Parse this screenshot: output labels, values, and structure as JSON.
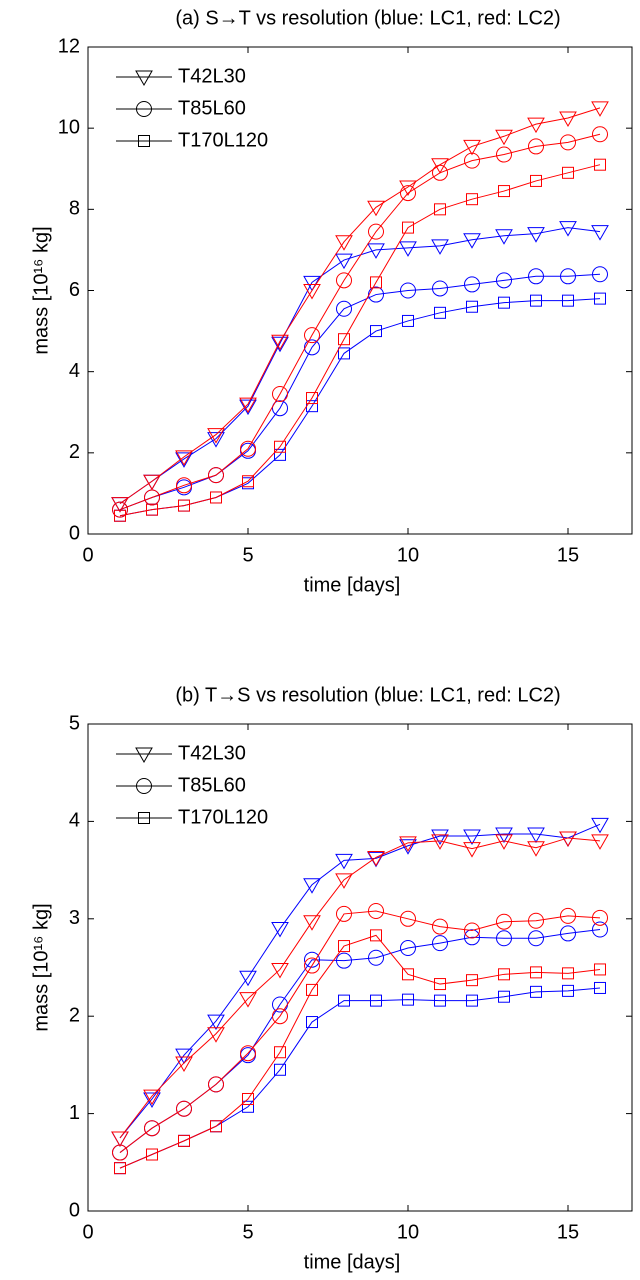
{
  "chart_data": [
    {
      "type": "line",
      "title": "(a)  S→T vs resolution (blue: LC1, red: LC2)",
      "xlabel": "time [days]",
      "ylabel": "mass [10¹⁶ kg]",
      "x": [
        1,
        2,
        3,
        4,
        5,
        6,
        7,
        8,
        9,
        10,
        11,
        12,
        13,
        14,
        15,
        16
      ],
      "xlim": [
        0,
        17
      ],
      "xticks": [
        0,
        5,
        10,
        15
      ],
      "ylim": [
        0,
        12
      ],
      "yticks": [
        0,
        2,
        4,
        6,
        8,
        10,
        12
      ],
      "grid": false,
      "legend_position": "upper-left",
      "legend": [
        {
          "name": "T42L30",
          "marker": "triangle"
        },
        {
          "name": "T85L60",
          "marker": "circle"
        },
        {
          "name": "T170L120",
          "marker": "square"
        }
      ],
      "series": [
        {
          "color": "#0000ff",
          "marker": "triangle",
          "values": [
            0.75,
            1.3,
            1.85,
            2.35,
            3.15,
            4.7,
            6.2,
            6.75,
            7.0,
            7.05,
            7.1,
            7.25,
            7.35,
            7.4,
            7.55,
            7.45
          ]
        },
        {
          "color": "#ff0000",
          "marker": "triangle",
          "values": [
            0.75,
            1.3,
            1.9,
            2.45,
            3.2,
            4.75,
            6.0,
            7.2,
            8.05,
            8.55,
            9.1,
            9.55,
            9.8,
            10.1,
            10.25,
            10.5
          ]
        },
        {
          "color": "#0000ff",
          "marker": "circle",
          "values": [
            0.6,
            0.9,
            1.15,
            1.45,
            2.05,
            3.1,
            4.6,
            5.55,
            5.9,
            6.0,
            6.05,
            6.15,
            6.25,
            6.35,
            6.35,
            6.4
          ]
        },
        {
          "color": "#ff0000",
          "marker": "circle",
          "values": [
            0.6,
            0.9,
            1.2,
            1.45,
            2.1,
            3.45,
            4.9,
            6.25,
            7.45,
            8.4,
            8.9,
            9.2,
            9.35,
            9.55,
            9.65,
            9.85
          ]
        },
        {
          "color": "#0000ff",
          "marker": "square",
          "values": [
            0.45,
            0.6,
            0.7,
            0.9,
            1.25,
            1.95,
            3.15,
            4.45,
            5.0,
            5.25,
            5.45,
            5.6,
            5.7,
            5.75,
            5.75,
            5.8
          ]
        },
        {
          "color": "#ff0000",
          "marker": "square",
          "values": [
            0.45,
            0.6,
            0.7,
            0.9,
            1.3,
            2.15,
            3.35,
            4.8,
            6.2,
            7.55,
            8.0,
            8.25,
            8.45,
            8.7,
            8.9,
            9.1
          ]
        }
      ]
    },
    {
      "type": "line",
      "title": "(b)  T→S  vs resolution (blue: LC1, red: LC2)",
      "xlabel": "time [days]",
      "ylabel": "mass [10¹⁶ kg]",
      "x": [
        1,
        2,
        3,
        4,
        5,
        6,
        7,
        8,
        9,
        10,
        11,
        12,
        13,
        14,
        15,
        16
      ],
      "xlim": [
        0,
        17
      ],
      "xticks": [
        0,
        5,
        10,
        15
      ],
      "ylim": [
        0,
        5
      ],
      "yticks": [
        0,
        1,
        2,
        3,
        4,
        5
      ],
      "grid": false,
      "legend_position": "upper-left",
      "legend": [
        {
          "name": "T42L30",
          "marker": "triangle"
        },
        {
          "name": "T85L60",
          "marker": "circle"
        },
        {
          "name": "T170L120",
          "marker": "square"
        }
      ],
      "series": [
        {
          "color": "#0000ff",
          "marker": "triangle",
          "values": [
            0.75,
            1.15,
            1.6,
            1.95,
            2.4,
            2.9,
            3.35,
            3.6,
            3.62,
            3.75,
            3.85,
            3.85,
            3.87,
            3.87,
            3.83,
            3.97
          ]
        },
        {
          "color": "#ff0000",
          "marker": "triangle",
          "values": [
            0.75,
            1.18,
            1.52,
            1.82,
            2.18,
            2.48,
            2.97,
            3.4,
            3.63,
            3.78,
            3.8,
            3.72,
            3.8,
            3.73,
            3.83,
            3.8
          ]
        },
        {
          "color": "#0000ff",
          "marker": "circle",
          "values": [
            0.6,
            0.85,
            1.05,
            1.3,
            1.6,
            2.12,
            2.58,
            2.57,
            2.6,
            2.7,
            2.75,
            2.81,
            2.8,
            2.8,
            2.85,
            2.89
          ]
        },
        {
          "color": "#ff0000",
          "marker": "circle",
          "values": [
            0.6,
            0.85,
            1.05,
            1.3,
            1.62,
            2.0,
            2.52,
            3.05,
            3.08,
            3.0,
            2.92,
            2.88,
            2.97,
            2.98,
            3.03,
            3.01
          ]
        },
        {
          "color": "#0000ff",
          "marker": "square",
          "values": [
            0.44,
            0.58,
            0.72,
            0.87,
            1.07,
            1.45,
            1.94,
            2.16,
            2.16,
            2.17,
            2.16,
            2.16,
            2.2,
            2.25,
            2.26,
            2.29
          ]
        },
        {
          "color": "#ff0000",
          "marker": "square",
          "values": [
            0.44,
            0.58,
            0.72,
            0.87,
            1.15,
            1.63,
            2.27,
            2.72,
            2.83,
            2.43,
            2.33,
            2.37,
            2.43,
            2.45,
            2.44,
            2.48
          ]
        }
      ]
    }
  ]
}
